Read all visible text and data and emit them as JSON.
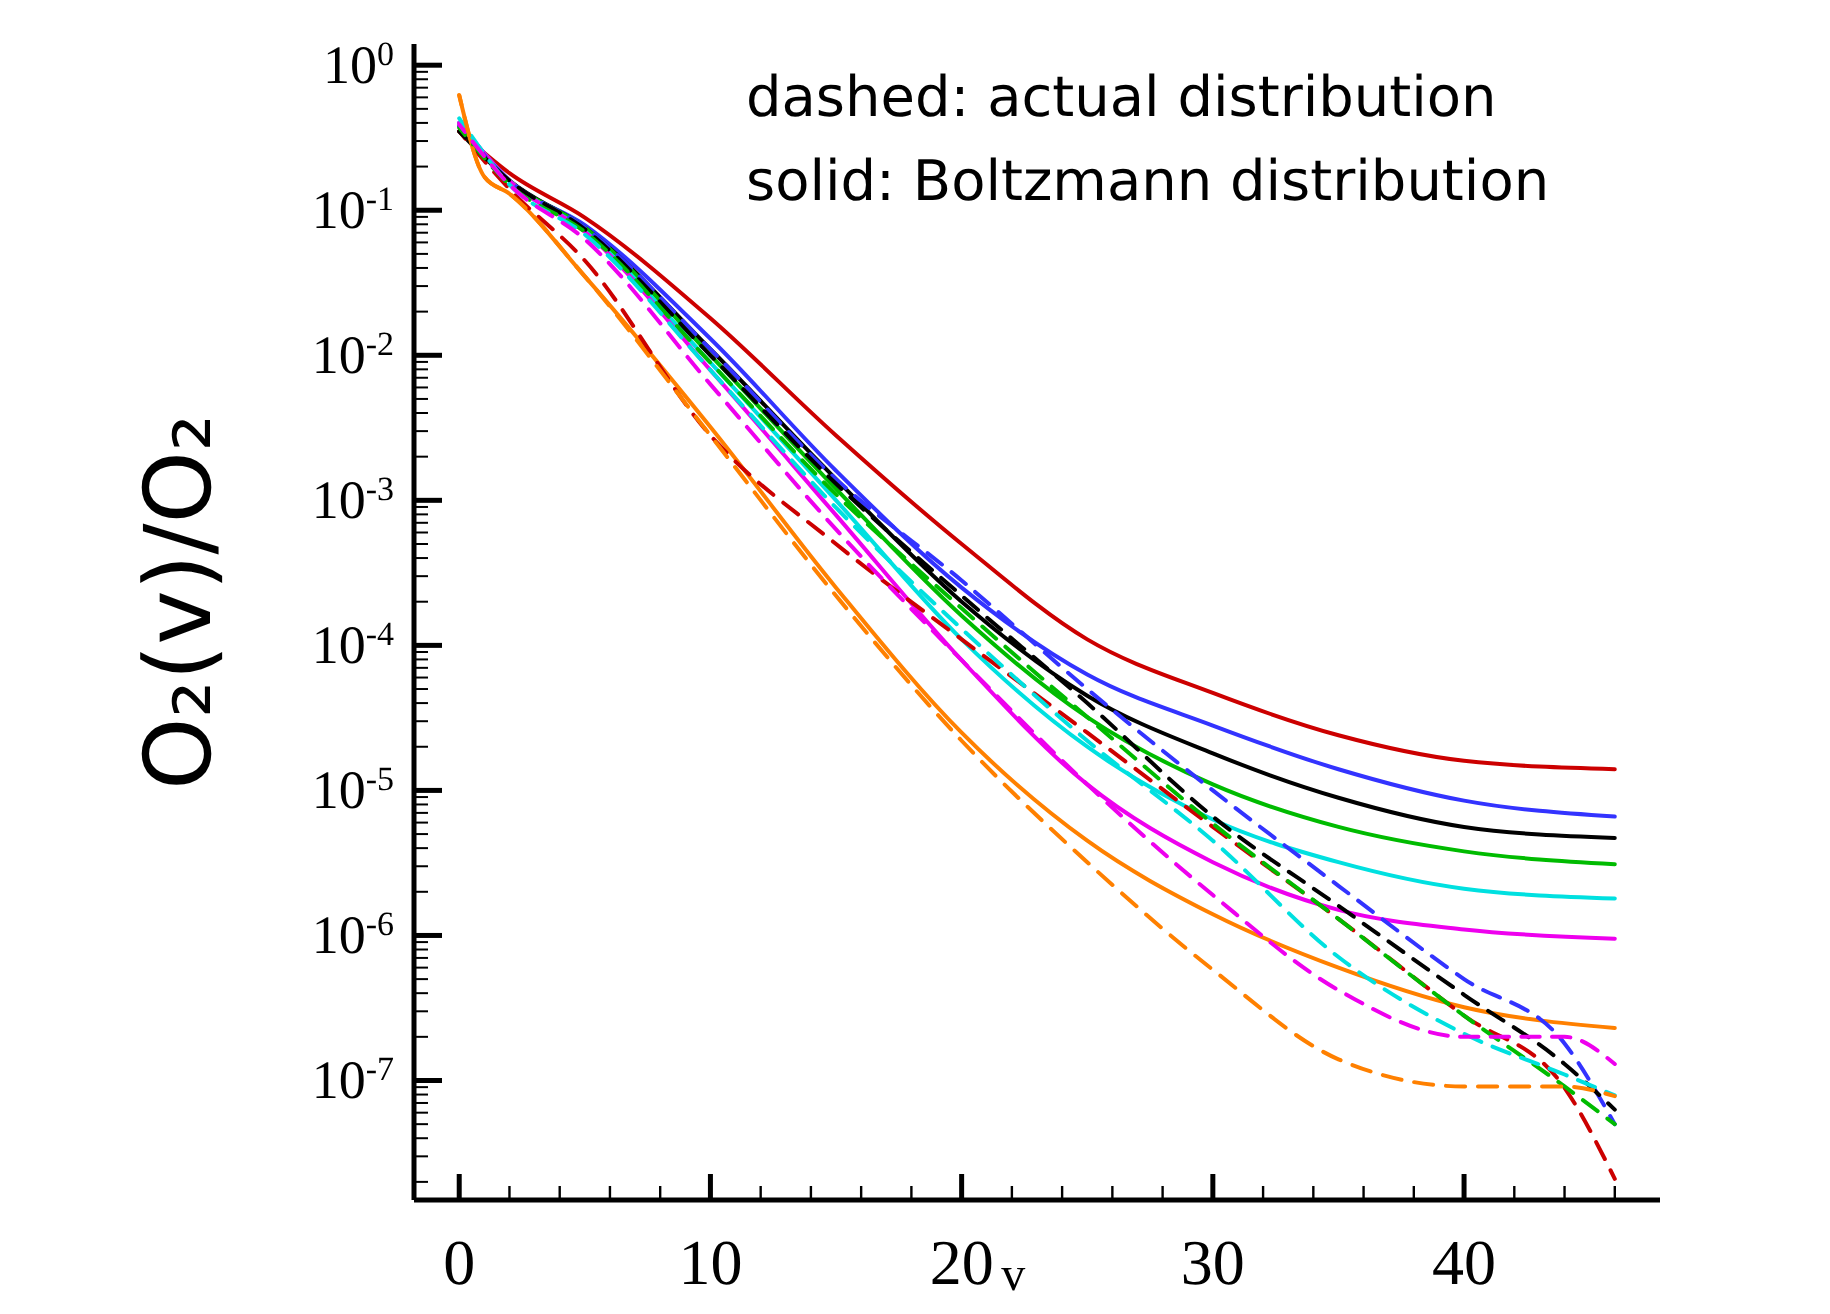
{
  "chart_data": {
    "type": "line",
    "xlabel": "v",
    "ylabel": "O₂(v)/O₂",
    "log": "y",
    "grid": false,
    "annotations": [
      "dashed: actual distribution",
      "solid: Boltzmann distribution"
    ],
    "xlim": [
      -1.8,
      47.8
    ],
    "ylim": [
      1.5e-08,
      1.4
    ],
    "xticks": [
      0,
      {
        "value": 2,
        "label": null
      },
      {
        "value": 4,
        "label": null
      },
      {
        "value": 6,
        "label": null
      },
      {
        "value": 8,
        "label": null
      },
      10,
      {
        "value": 12,
        "label": null
      },
      {
        "value": 14,
        "label": null
      },
      {
        "value": 16,
        "label": null
      },
      {
        "value": 18,
        "label": null
      },
      20,
      {
        "value": 22,
        "label": null
      },
      {
        "value": 24,
        "label": null
      },
      {
        "value": 26,
        "label": null
      },
      {
        "value": 28,
        "label": null
      },
      30,
      {
        "value": 32,
        "label": null
      },
      {
        "value": 34,
        "label": null
      },
      {
        "value": 36,
        "label": null
      },
      {
        "value": 38,
        "label": null
      },
      40,
      {
        "value": 42,
        "label": null
      },
      {
        "value": 44,
        "label": null
      },
      {
        "value": 46,
        "label": null
      }
    ],
    "yticks": [
      {
        "value": 1,
        "label": "10$^{0}$"
      },
      {
        "value": 0.1,
        "label": "10$^{-1}$"
      },
      {
        "value": 0.01,
        "label": "10$^{-2}$"
      },
      {
        "value": 0.001,
        "label": "10$^{-3}$"
      },
      {
        "value": 0.0001,
        "label": "10$^{-4}$"
      },
      {
        "value": 1e-05,
        "label": "10$^{-5}$"
      },
      {
        "value": 1e-06,
        "label": "10$^{-6}$"
      },
      {
        "value": 1e-07,
        "label": "10$^{-7}$"
      }
    ],
    "series": [
      {
        "color": "#cc0000",
        "line_style": "solid",
        "x": [
          0,
          2,
          5,
          10,
          15,
          20,
          25,
          30,
          35,
          40,
          46
        ],
        "values": [
          0.35,
          0.18,
          0.089,
          0.018,
          0.0028,
          0.0005,
          0.00011,
          4.7e-05,
          2.4e-05,
          1.6e-05,
          1.4e-05
        ]
      },
      {
        "color": "#3333ff",
        "line_style": "solid",
        "x": [
          0,
          2,
          5,
          10,
          15,
          20,
          25,
          30,
          35,
          40,
          46
        ],
        "values": [
          0.4,
          0.16,
          0.079,
          0.013,
          0.0016,
          0.00025,
          6.3e-05,
          2.8e-05,
          1.4e-05,
          8.5e-06,
          6.6e-06
        ]
      },
      {
        "color": "#000000",
        "line_style": "solid",
        "x": [
          0,
          2,
          5,
          10,
          15,
          20,
          25,
          30,
          35,
          40,
          46
        ],
        "values": [
          0.35,
          0.16,
          0.076,
          0.011,
          0.0014,
          0.0002,
          4.5e-05,
          1.8e-05,
          8.9e-06,
          5.6e-06,
          4.7e-06
        ]
      },
      {
        "color": "#00bb00",
        "line_style": "solid",
        "x": [
          0,
          2,
          5,
          10,
          15,
          20,
          25,
          30,
          35,
          40,
          46
        ],
        "values": [
          0.38,
          0.16,
          0.076,
          0.01,
          0.0012,
          0.00016,
          3.2e-05,
          1.1e-05,
          5.6e-06,
          3.8e-06,
          3.1e-06
        ]
      },
      {
        "color": "#00e0e0",
        "line_style": "solid",
        "x": [
          0,
          2,
          5,
          10,
          15,
          20,
          25,
          30,
          35,
          40,
          46
        ],
        "values": [
          0.4,
          0.16,
          0.072,
          0.0089,
          0.001,
          0.00011,
          2e-05,
          6.3e-06,
          3.2e-06,
          2.1e-06,
          1.8e-06
        ]
      },
      {
        "color": "#ee00ee",
        "line_style": "solid",
        "x": [
          0,
          2,
          5,
          10,
          15,
          20,
          25,
          30,
          35,
          40,
          46
        ],
        "values": [
          0.4,
          0.16,
          0.071,
          0.0079,
          0.00079,
          7.9e-05,
          1.1e-05,
          3.2e-06,
          1.5e-06,
          1.1e-06,
          9.5e-07
        ]
      },
      {
        "color": "#ff8000",
        "line_style": "solid",
        "x": [
          0,
          1,
          2,
          5,
          10,
          15,
          20,
          25,
          30,
          35,
          40,
          46
        ],
        "values": [
          0.62,
          0.17,
          0.13,
          0.035,
          0.0032,
          0.00025,
          2.5e-05,
          4.5e-06,
          1.4e-06,
          6e-07,
          3.2e-07,
          2.3e-07
        ]
      },
      {
        "color": "#cc0000",
        "line_style": "dashed",
        "x": [
          0,
          2,
          5,
          10,
          15,
          20,
          25,
          30,
          35,
          40,
          44,
          46
        ],
        "values": [
          0.35,
          0.14,
          0.045,
          0.0028,
          0.0005,
          0.00011,
          2.5e-05,
          5.6e-06,
          1.3e-06,
          2.8e-07,
          8.9e-08,
          2.1e-08
        ]
      },
      {
        "color": "#3333ff",
        "line_style": "dashed",
        "x": [
          0,
          2,
          5,
          10,
          15,
          20,
          25,
          30,
          35,
          40,
          44,
          46
        ],
        "values": [
          0.38,
          0.16,
          0.076,
          0.011,
          0.0014,
          0.00028,
          5e-05,
          1e-05,
          2.2e-06,
          5e-07,
          1.8e-07,
          5e-08
        ]
      },
      {
        "color": "#000000",
        "line_style": "dashed",
        "x": [
          0,
          2,
          5,
          10,
          15,
          20,
          25,
          30,
          35,
          40,
          44,
          46
        ],
        "values": [
          0.35,
          0.16,
          0.074,
          0.01,
          0.0013,
          0.00022,
          4e-05,
          6.6e-06,
          1.6e-06,
          3.9e-07,
          1.3e-07,
          6.3e-08
        ]
      },
      {
        "color": "#00bb00",
        "line_style": "dashed",
        "x": [
          0,
          2,
          5,
          10,
          15,
          20,
          25,
          30,
          35,
          40,
          44,
          46
        ],
        "values": [
          0.37,
          0.15,
          0.071,
          0.0089,
          0.0011,
          0.00018,
          3.2e-05,
          5.9e-06,
          1.3e-06,
          2.8e-07,
          9.1e-08,
          5e-08
        ]
      },
      {
        "color": "#00e0e0",
        "line_style": "dashed",
        "x": [
          0,
          2,
          5,
          10,
          15,
          20,
          25,
          30,
          35,
          40,
          44,
          46
        ],
        "values": [
          0.43,
          0.15,
          0.068,
          0.0079,
          0.00089,
          0.00013,
          2.2e-05,
          4.5e-06,
          7.1e-07,
          2.1e-07,
          1.1e-07,
          7.9e-08
        ]
      },
      {
        "color": "#ee00ee",
        "line_style": "dashed",
        "x": [
          0,
          2,
          5,
          10,
          15,
          20,
          25,
          30,
          35,
          40,
          44,
          46
        ],
        "values": [
          0.39,
          0.15,
          0.063,
          0.0063,
          0.00063,
          7.9e-05,
          1.1e-05,
          1.9e-06,
          4.2e-07,
          2e-07,
          2e-07,
          1.3e-07
        ]
      },
      {
        "color": "#ff8000",
        "line_style": "dashed",
        "x": [
          0,
          1,
          2,
          5,
          10,
          15,
          20,
          25,
          30,
          35,
          40,
          44,
          46
        ],
        "values": [
          0.62,
          0.17,
          0.13,
          0.035,
          0.0028,
          0.00022,
          2.2e-05,
          3.2e-06,
          5.8e-07,
          1.4e-07,
          9.1e-08,
          9.1e-08,
          7.8e-08
        ]
      }
    ]
  }
}
